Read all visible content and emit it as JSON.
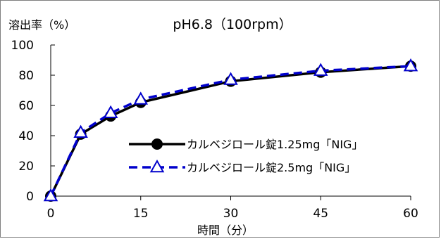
{
  "chart_data": {
    "type": "line",
    "title": "pH6.8（100rpm）",
    "ylabel": "溶出率（%）",
    "xlabel": "時間（分）",
    "x": [
      0,
      5,
      10,
      15,
      30,
      45,
      60
    ],
    "xticks": [
      "0",
      "15",
      "30",
      "45",
      "60"
    ],
    "xtick_values": [
      0,
      15,
      30,
      45,
      60
    ],
    "yticks": [
      "0",
      "20",
      "40",
      "60",
      "80",
      "100"
    ],
    "ytick_values": [
      0,
      20,
      40,
      60,
      80,
      100
    ],
    "xlim": [
      0,
      60
    ],
    "ylim": [
      0,
      100
    ],
    "grid": false,
    "legend_position": "lower-right",
    "series": [
      {
        "name": "カルベジロール錠1.25mg「NIG」",
        "values": [
          0,
          41,
          53,
          62,
          76,
          82,
          86
        ],
        "color": "#000000",
        "marker": "circle",
        "line": "solid"
      },
      {
        "name": "カルベジロール錠2.5mg「NIG」",
        "values": [
          0,
          42,
          55,
          64,
          77,
          83,
          86
        ],
        "color": "#0000cc",
        "marker": "triangle-open",
        "line": "dashed"
      }
    ]
  }
}
